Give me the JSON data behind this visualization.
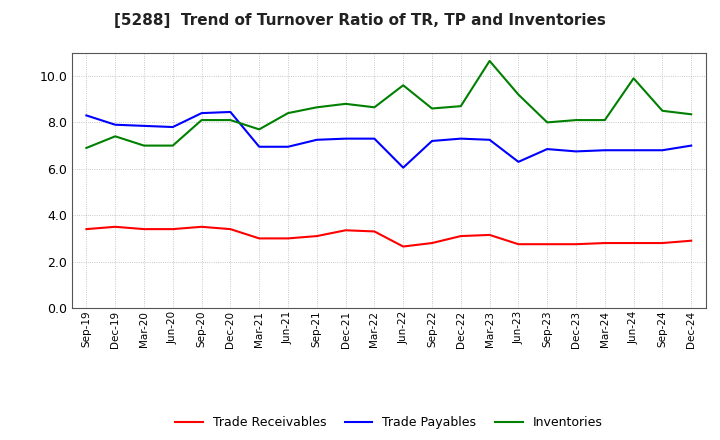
{
  "title": "[5288]  Trend of Turnover Ratio of TR, TP and Inventories",
  "labels": [
    "Sep-19",
    "Dec-19",
    "Mar-20",
    "Jun-20",
    "Sep-20",
    "Dec-20",
    "Mar-21",
    "Jun-21",
    "Sep-21",
    "Dec-21",
    "Mar-22",
    "Jun-22",
    "Sep-22",
    "Dec-22",
    "Mar-23",
    "Jun-23",
    "Sep-23",
    "Dec-23",
    "Mar-24",
    "Jun-24",
    "Sep-24",
    "Dec-24"
  ],
  "trade_receivables": [
    3.4,
    3.5,
    3.4,
    3.4,
    3.5,
    3.4,
    3.0,
    3.0,
    3.1,
    3.35,
    3.3,
    2.65,
    2.8,
    3.1,
    3.15,
    2.75,
    2.75,
    2.75,
    2.8,
    2.8,
    2.8,
    2.9
  ],
  "trade_payables": [
    8.3,
    7.9,
    7.85,
    7.8,
    8.4,
    8.45,
    6.95,
    6.95,
    7.25,
    7.3,
    7.3,
    6.05,
    7.2,
    7.3,
    7.25,
    6.3,
    6.85,
    6.75,
    6.8,
    6.8,
    6.8,
    7.0
  ],
  "inventories": [
    6.9,
    7.4,
    7.0,
    7.0,
    8.1,
    8.1,
    7.7,
    8.4,
    8.65,
    8.8,
    8.65,
    9.6,
    8.6,
    8.7,
    10.65,
    9.2,
    8.0,
    8.1,
    8.1,
    9.9,
    8.5,
    8.35
  ],
  "ylim": [
    0,
    11.0
  ],
  "yticks": [
    0.0,
    2.0,
    4.0,
    6.0,
    8.0,
    10.0
  ],
  "color_tr": "#ff0000",
  "color_tp": "#0000ff",
  "color_inv": "#008000",
  "legend_labels": [
    "Trade Receivables",
    "Trade Payables",
    "Inventories"
  ],
  "background_color": "#ffffff",
  "grid_color": "#999999"
}
